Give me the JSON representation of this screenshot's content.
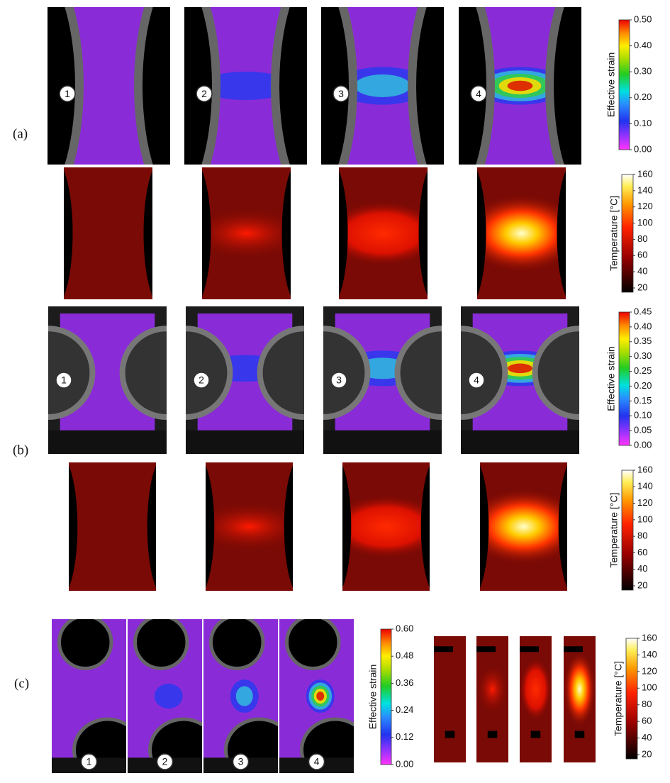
{
  "panels": [
    {
      "label": "(a)",
      "steps": [
        "1",
        "2",
        "3",
        "4"
      ],
      "strain_colorbar": {
        "title": "Effective strain",
        "ticks": [
          "0.50",
          "0.40",
          "0.30",
          "0.20",
          "0.10",
          "0.00"
        ]
      },
      "temperature_colorbar": {
        "title": "Temperature [°C]",
        "ticks": [
          160,
          140,
          120,
          100,
          80,
          60,
          40,
          20
        ]
      }
    },
    {
      "label": "(b)",
      "steps": [
        "1",
        "2",
        "3",
        "4"
      ],
      "strain_colorbar": {
        "title": "Effective strain",
        "ticks": [
          "0.45",
          "0.40",
          "0.35",
          "0.30",
          "0.25",
          "0.20",
          "0.15",
          "0.10",
          "0.05",
          "0.00"
        ]
      },
      "temperature_colorbar": {
        "title": "Temperature [°C]",
        "ticks": [
          160,
          140,
          120,
          100,
          80,
          60,
          40,
          20
        ]
      }
    },
    {
      "label": "(c)",
      "steps": [
        "1",
        "2",
        "3",
        "4"
      ],
      "strain_colorbar": {
        "title": "Effective strain",
        "ticks": [
          "0.60",
          "0.48",
          "0.36",
          "0.24",
          "0.12",
          "0.00"
        ]
      },
      "temperature_colorbar": {
        "title": "Temperature [°C]",
        "ticks": [
          160,
          140,
          120,
          100,
          80,
          60,
          40,
          20
        ]
      }
    }
  ]
}
